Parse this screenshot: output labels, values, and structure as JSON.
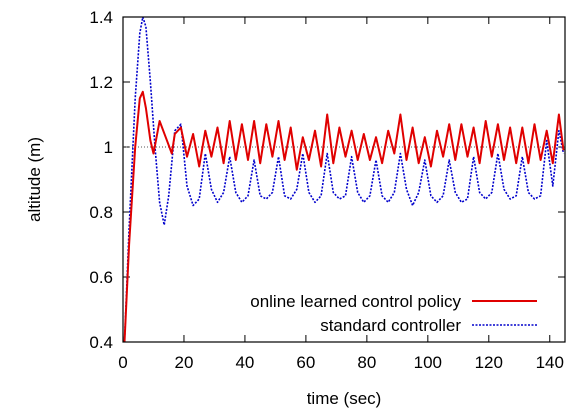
{
  "chart_data": {
    "type": "line",
    "title": "",
    "xlabel": "time (sec)",
    "ylabel": "altitude (m)",
    "xlim": [
      0,
      145
    ],
    "ylim": [
      0.4,
      1.4
    ],
    "xticks": [
      0,
      20,
      40,
      60,
      80,
      100,
      120,
      140
    ],
    "yticks": [
      0.4,
      0.6,
      0.8,
      1.0,
      1.2,
      1.4
    ],
    "xtick_labels": [
      "0",
      "20",
      "40",
      "60",
      "80",
      "100",
      "120",
      "140"
    ],
    "ytick_labels": [
      "0.4",
      "0.6",
      "0.8",
      "1",
      "1.2",
      "1.4"
    ],
    "grid": false,
    "legend_position": "bottom-right",
    "reference_line": {
      "y": 1.0,
      "color": "#555555",
      "style": "dotted"
    },
    "series": [
      {
        "name": "online learned control policy",
        "color": "#e00000",
        "style": "solid",
        "x": [
          0.5,
          2,
          4,
          5.5,
          6.5,
          7.5,
          9,
          10,
          12,
          14,
          16,
          17,
          19,
          21,
          23,
          25,
          27,
          29,
          31,
          33,
          35,
          37,
          39,
          41,
          43,
          45,
          47,
          49,
          51,
          53,
          55,
          57,
          59,
          61,
          63,
          65,
          67,
          69,
          71,
          73,
          75,
          77,
          79,
          81,
          83,
          85,
          87,
          89,
          91,
          93,
          95,
          97,
          99,
          101,
          103,
          105,
          107,
          109,
          111,
          113,
          115,
          117,
          119,
          121,
          123,
          125,
          127,
          129,
          131,
          133,
          135,
          137,
          139,
          141,
          143,
          144.5
        ],
        "y": [
          0.4,
          0.7,
          1.0,
          1.15,
          1.17,
          1.12,
          1.02,
          0.98,
          1.08,
          1.03,
          0.98,
          1.04,
          1.06,
          0.97,
          1.04,
          0.94,
          1.05,
          0.97,
          1.06,
          0.95,
          1.08,
          0.96,
          1.07,
          0.96,
          1.08,
          0.95,
          1.07,
          0.97,
          1.08,
          0.96,
          1.06,
          0.93,
          1.03,
          0.96,
          1.05,
          0.94,
          1.1,
          0.95,
          1.06,
          0.97,
          1.05,
          0.96,
          1.04,
          0.96,
          1.03,
          0.95,
          1.05,
          0.98,
          1.1,
          0.96,
          1.06,
          0.95,
          1.03,
          0.94,
          1.05,
          0.97,
          1.07,
          0.96,
          1.07,
          0.97,
          1.06,
          0.95,
          1.08,
          0.97,
          1.07,
          0.96,
          1.06,
          0.95,
          1.06,
          0.95,
          1.07,
          0.96,
          1.05,
          0.95,
          1.1,
          0.99
        ]
      },
      {
        "name": "standard controller",
        "color": "#0000cc",
        "style": "dotted",
        "x": [
          0.5,
          2,
          4,
          5.5,
          6.5,
          7.5,
          9,
          10.5,
          12,
          13.5,
          15,
          17,
          19,
          21,
          23,
          25,
          27,
          29,
          31,
          33,
          35,
          37,
          39,
          41,
          43,
          45,
          47,
          49,
          51,
          53,
          55,
          57,
          59,
          61,
          63,
          65,
          67,
          69,
          71,
          73,
          75,
          77,
          79,
          81,
          83,
          85,
          87,
          89,
          91,
          93,
          95,
          97,
          99,
          101,
          103,
          105,
          107,
          109,
          111,
          113,
          115,
          117,
          119,
          121,
          123,
          125,
          127,
          129,
          131,
          133,
          135,
          137,
          139,
          141,
          143,
          144.5
        ],
        "y": [
          0.4,
          0.75,
          1.15,
          1.35,
          1.4,
          1.37,
          1.2,
          1.0,
          0.83,
          0.76,
          0.85,
          1.05,
          1.07,
          0.88,
          0.82,
          0.84,
          0.98,
          0.87,
          0.83,
          0.86,
          0.97,
          0.86,
          0.83,
          0.85,
          0.96,
          0.85,
          0.84,
          0.86,
          0.97,
          0.85,
          0.84,
          0.87,
          0.98,
          0.86,
          0.83,
          0.85,
          0.98,
          0.86,
          0.84,
          0.85,
          0.97,
          0.86,
          0.83,
          0.85,
          0.96,
          0.85,
          0.83,
          0.86,
          0.98,
          0.87,
          0.82,
          0.86,
          0.96,
          0.85,
          0.83,
          0.85,
          0.96,
          0.86,
          0.83,
          0.84,
          0.97,
          0.86,
          0.84,
          0.86,
          0.98,
          0.87,
          0.84,
          0.85,
          0.97,
          0.86,
          0.84,
          0.85,
          1.02,
          0.88,
          1.05,
          0.98
        ]
      }
    ]
  }
}
